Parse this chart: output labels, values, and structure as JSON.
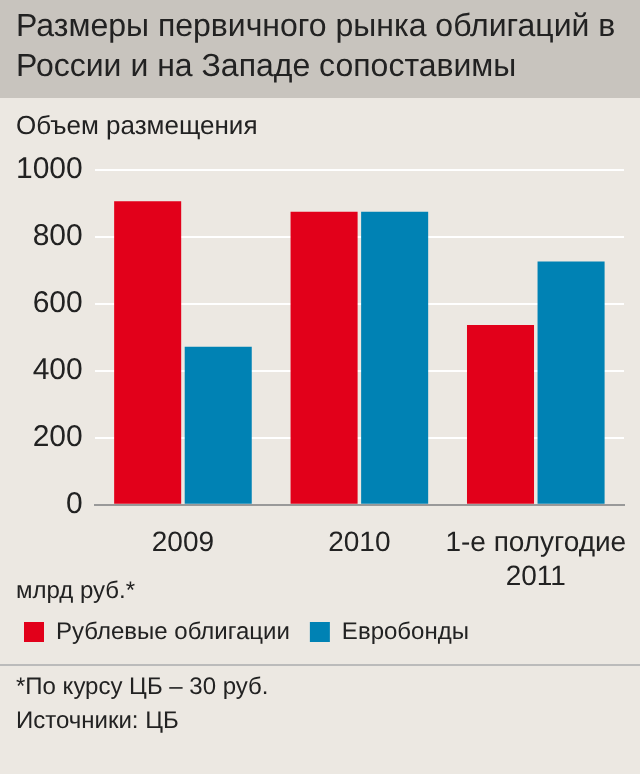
{
  "chart_data": {
    "type": "bar",
    "title": "Размеры первичного рынка облигаций в России и на Западе сопоставимы",
    "subtitle": "Объем размещения",
    "categories": [
      "2009",
      "2010",
      "1-е полугодие 2011"
    ],
    "series": [
      {
        "name": "Рублевые облигации",
        "color": "#e2001a",
        "values": [
          907,
          875,
          537
        ]
      },
      {
        "name": "Евробонды",
        "color": "#0082b4",
        "values": [
          472,
          875,
          727
        ]
      }
    ],
    "ylim": [
      0,
      1000
    ],
    "yticks": [
      0,
      200,
      400,
      600,
      800,
      1000
    ],
    "grid": "y",
    "legend": "bottom",
    "annotations": [
      "млрд руб.*",
      "*По курсу ЦБ – 30 руб.",
      "Источники: ЦБ"
    ]
  }
}
